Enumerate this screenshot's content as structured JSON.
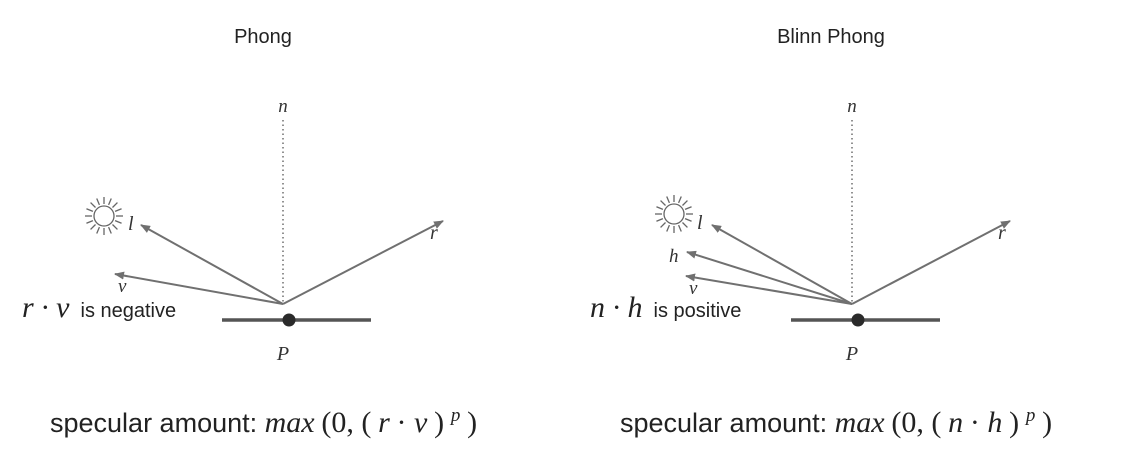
{
  "panels": [
    {
      "title": "Phong",
      "labels": {
        "n": "n",
        "l": "l",
        "r": "r",
        "v": "v",
        "P": "P"
      },
      "condition": {
        "expr": "r · v",
        "text": "is negative"
      },
      "formula": {
        "prefix": "specular amount: ",
        "func": "max",
        "open": "(0, (",
        "a": "r",
        "dot": " · ",
        "b": "v",
        "close": ")",
        "exp": "p",
        "end": ")"
      }
    },
    {
      "title": "Blinn Phong",
      "labels": {
        "n": "n",
        "l": "l",
        "h": "h",
        "r": "r",
        "v": "v",
        "P": "P"
      },
      "condition": {
        "expr": "n · h",
        "text": "is positive"
      },
      "formula": {
        "prefix": "specular amount: ",
        "func": "max",
        "open": "(0, (",
        "a": "n",
        "dot": " · ",
        "b": "h",
        "close": ")",
        "exp": "p",
        "end": ")"
      }
    }
  ],
  "colors": {
    "vectors": "#707070",
    "surface": "#555555",
    "point": "#2a2a2a",
    "text": "#222222"
  },
  "icons": [
    "sun-icon"
  ]
}
